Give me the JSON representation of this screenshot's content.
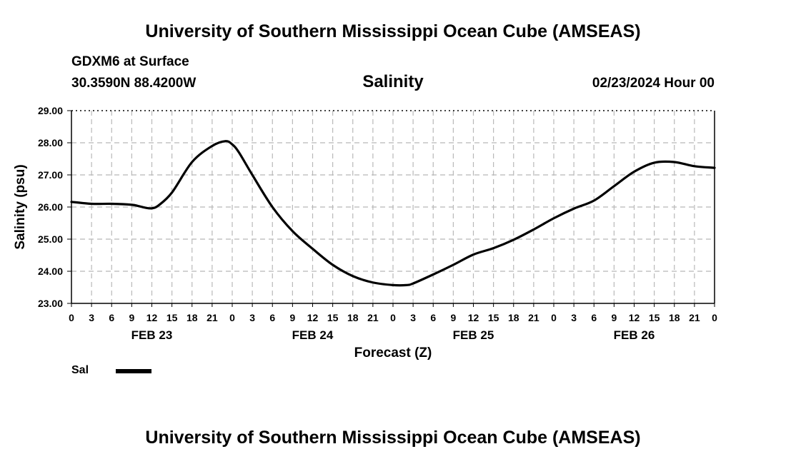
{
  "header": {
    "top_title": "University of Southern Mississippi Ocean Cube (AMSEAS)",
    "station": "GDXM6 at Surface",
    "coords": "30.3590N  88.4200W",
    "variable": "Salinity",
    "datetime": "02/23/2024 Hour 00"
  },
  "footer": {
    "bottom_title": "University of Southern Mississippi Ocean Cube (AMSEAS)"
  },
  "legend": {
    "label": "Sal",
    "color": "#000000"
  },
  "chart_data": {
    "type": "line",
    "title": "Salinity",
    "xlabel": "Forecast (Z)",
    "ylabel": "Salinity (psu)",
    "ylim": [
      23.0,
      29.0
    ],
    "yticks": [
      "23.00",
      "24.00",
      "25.00",
      "26.00",
      "27.00",
      "28.00",
      "29.00"
    ],
    "xlim_hours": [
      0,
      96
    ],
    "xtick_step_hours": 3,
    "xtick_labels": [
      "0",
      "3",
      "6",
      "9",
      "12",
      "15",
      "18",
      "21",
      "0",
      "3",
      "6",
      "9",
      "12",
      "15",
      "18",
      "21",
      "0",
      "3",
      "6",
      "9",
      "12",
      "15",
      "18",
      "21",
      "0",
      "3",
      "6",
      "9",
      "12",
      "15",
      "18",
      "21",
      "0"
    ],
    "day_labels": [
      {
        "label": "FEB 23",
        "hour": 12
      },
      {
        "label": "FEB 24",
        "hour": 36
      },
      {
        "label": "FEB 25",
        "hour": 60
      },
      {
        "label": "FEB 26",
        "hour": 84
      }
    ],
    "grid": true,
    "series": [
      {
        "name": "Sal",
        "x": [
          0,
          3,
          6,
          9,
          10,
          11,
          12,
          13,
          15,
          18,
          21,
          23,
          24,
          25,
          27,
          30,
          33,
          36,
          39,
          42,
          45,
          48,
          50,
          51,
          54,
          57,
          60,
          63,
          66,
          69,
          72,
          75,
          78,
          81,
          84,
          87,
          90,
          93,
          96
        ],
        "y": [
          26.16,
          26.1,
          26.1,
          26.07,
          26.03,
          25.98,
          25.96,
          26.05,
          26.45,
          27.4,
          27.9,
          28.05,
          27.95,
          27.7,
          27.0,
          26.0,
          25.25,
          24.7,
          24.2,
          23.85,
          23.65,
          23.57,
          23.57,
          23.62,
          23.9,
          24.2,
          24.52,
          24.72,
          24.98,
          25.3,
          25.65,
          25.95,
          26.2,
          26.65,
          27.1,
          27.38,
          27.4,
          27.27,
          27.22
        ]
      }
    ]
  }
}
